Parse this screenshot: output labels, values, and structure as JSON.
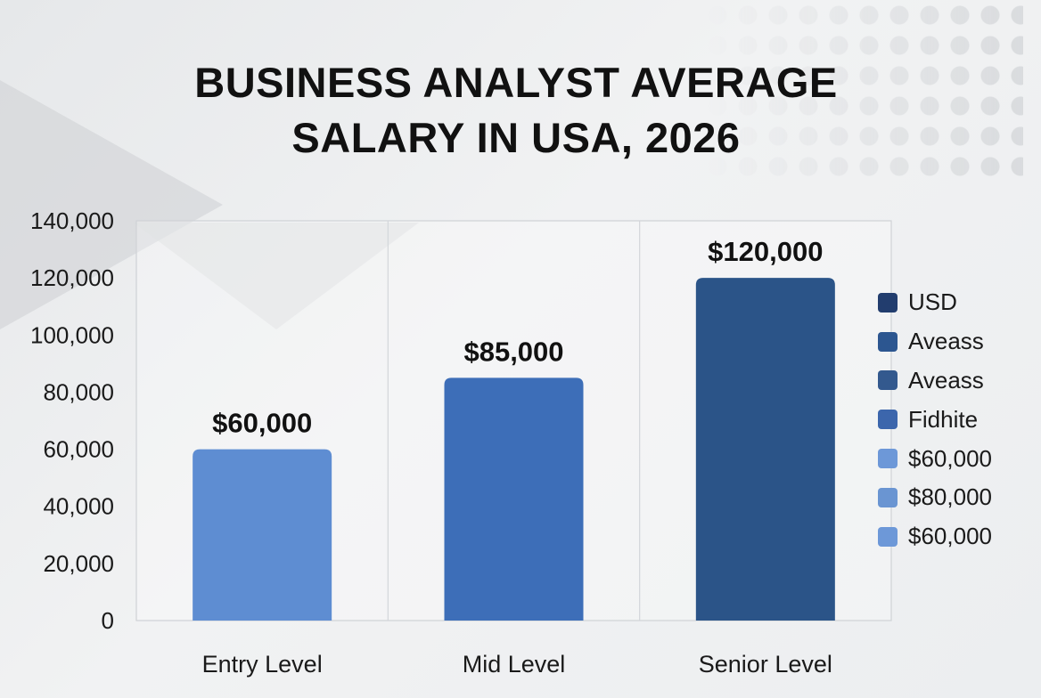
{
  "chart_data": {
    "type": "bar",
    "title_lines": [
      "BUSINESS ANALYST AVERAGE",
      "SALARY IN USA, 2026"
    ],
    "categories": [
      "Entry Level",
      "Mid Level",
      "Senior Level"
    ],
    "values": [
      60000,
      85000,
      120000
    ],
    "bar_value_labels": [
      "$60,000",
      "$85,000",
      "$120,000"
    ],
    "bar_colors": [
      "#5e8dd2",
      "#3d6eb8",
      "#2b5488"
    ],
    "y_ticks": [
      0,
      20000,
      40000,
      60000,
      80000,
      100000,
      120000,
      140000
    ],
    "y_tick_labels": [
      "0",
      "20,000",
      "40,000",
      "60,000",
      "80,000",
      "100,000",
      "120,000",
      "140,000"
    ],
    "ylim": [
      0,
      140000
    ],
    "xlabel": "",
    "ylabel": "",
    "grid": true,
    "legend_position": "right",
    "legend": [
      {
        "label": "USD",
        "color": "#223d6e"
      },
      {
        "label": "Aveass",
        "color": "#2c5690"
      },
      {
        "label": "Aveass",
        "color": "#33598e"
      },
      {
        "label": "Fidhite",
        "color": "#3c66ac"
      },
      {
        "label": "$60,000",
        "color": "#6d98d8"
      },
      {
        "label": "$80,000",
        "color": "#6a95d2"
      },
      {
        "label": "$60,000",
        "color": "#6d98d8"
      }
    ]
  }
}
